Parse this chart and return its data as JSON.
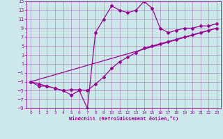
{
  "xlabel": "Windchill (Refroidissement éolien,°C)",
  "bg_color": "#cce8e8",
  "line_color": "#990099",
  "xlim": [
    -0.5,
    23.5
  ],
  "ylim": [
    -9,
    15
  ],
  "xticks": [
    0,
    1,
    2,
    3,
    4,
    5,
    6,
    7,
    8,
    9,
    10,
    11,
    12,
    13,
    14,
    15,
    16,
    17,
    18,
    19,
    20,
    21,
    22,
    23
  ],
  "yticks": [
    -9,
    -7,
    -5,
    -3,
    -1,
    1,
    3,
    5,
    7,
    9,
    11,
    13,
    15
  ],
  "curve1_x": [
    0,
    1,
    2,
    3,
    4,
    5,
    6,
    7,
    8,
    9,
    10,
    11,
    12,
    13,
    14,
    15,
    16,
    17,
    18,
    19,
    20,
    21,
    22,
    23
  ],
  "curve1_y": [
    -3,
    -4,
    -4,
    -4.5,
    -5,
    -6,
    -5,
    -9,
    8,
    11,
    14,
    13,
    12.5,
    13,
    15,
    13.5,
    9,
    8,
    8.5,
    9,
    9,
    9.5,
    9.5,
    10
  ],
  "curve2_x": [
    0,
    1,
    2,
    3,
    4,
    5,
    6,
    7,
    8,
    9,
    10,
    11,
    12,
    13,
    14,
    15,
    16,
    17,
    18,
    19,
    20,
    21,
    22,
    23
  ],
  "curve2_y": [
    -3,
    -3.5,
    -4,
    -4.5,
    -5,
    -4.8,
    -4.8,
    -5,
    -3.5,
    -2,
    0,
    1.5,
    2.5,
    3.5,
    4.5,
    5,
    5.5,
    6,
    6.5,
    7,
    7.5,
    8,
    8.5,
    9
  ],
  "curve3_x": [
    0,
    23
  ],
  "curve3_y": [
    -3,
    9
  ]
}
